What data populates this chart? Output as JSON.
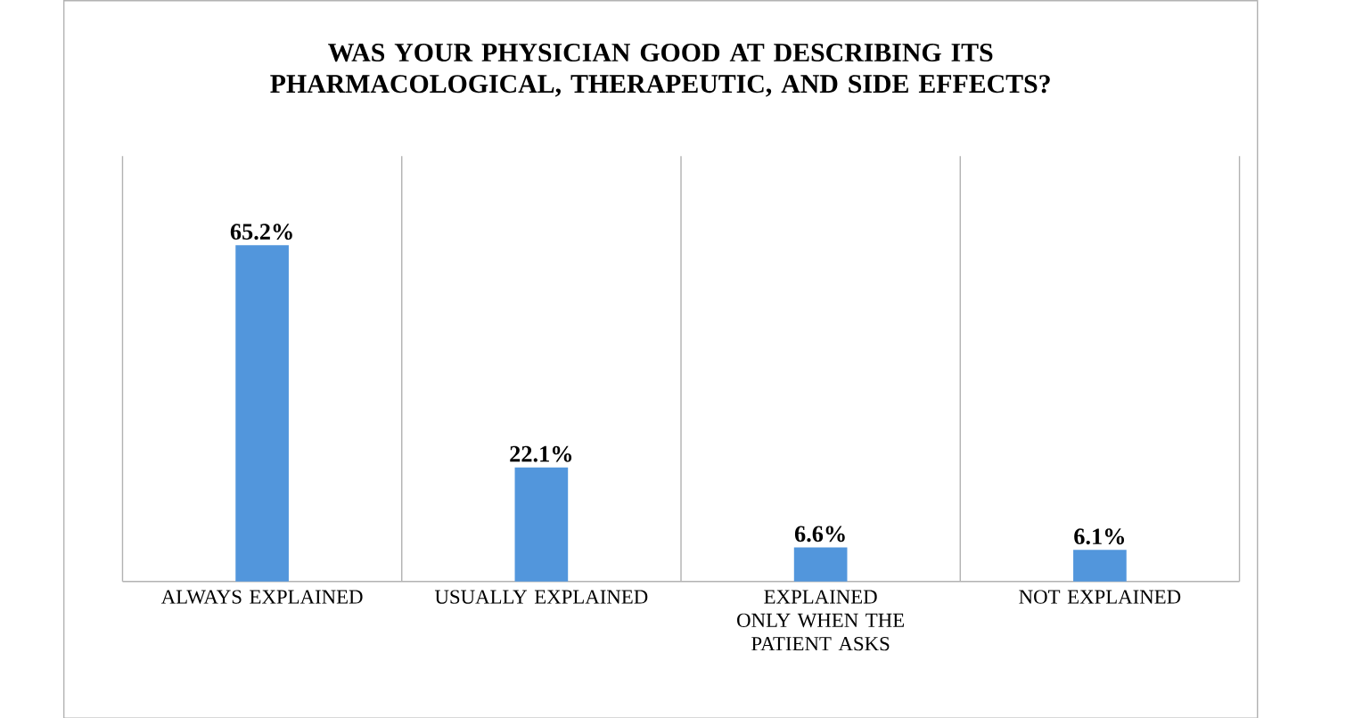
{
  "chart_data": {
    "type": "bar",
    "title": "WAS YOUR PHYSICIAN GOOD AT DESCRIBING ITS PHARMACOLOGICAL, THERAPEUTIC, AND SIDE EFFECTS?",
    "categories": [
      "ALWAYS EXPLAINED",
      "USUALLY EXPLAINED",
      "EXPLAINED ONLY WHEN THE PATIENT ASKS",
      "NOT EXPLAINED"
    ],
    "values": [
      65.2,
      22.1,
      6.6,
      6.1
    ],
    "value_labels": [
      "65.2%",
      "22.1%",
      "6.6%",
      "6.1%"
    ],
    "color": "#5296dc"
  }
}
